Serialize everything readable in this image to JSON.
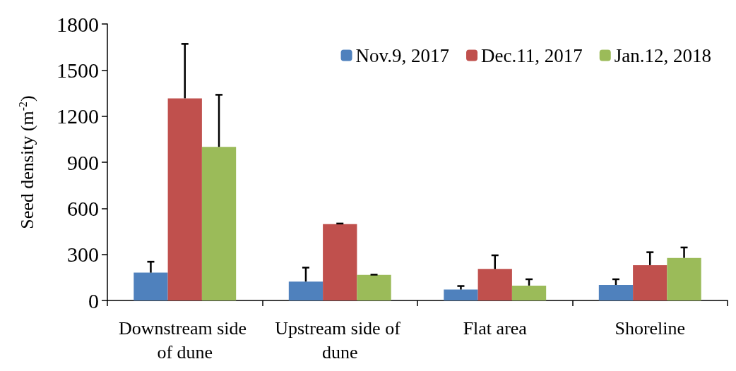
{
  "chart_data": {
    "type": "bar",
    "ylabel": "Seed density (m$^{-2}$)",
    "categories": [
      "Downstream side of dune",
      "Upstream side of dune",
      "Flat area",
      "Shoreline"
    ],
    "series": [
      {
        "name": "Nov.9, 2017",
        "color": "#4f81bd",
        "values": [
          181,
          123,
          71,
          101
        ],
        "errors": [
          [
            181,
            252
          ],
          [
            123,
            214
          ],
          [
            71,
            94
          ],
          [
            101,
            138
          ]
        ]
      },
      {
        "name": "Dec.11, 2017",
        "color": "#c0504d",
        "values": [
          1316,
          497,
          205,
          230
        ],
        "errors": [
          [
            1316,
            1670
          ],
          [
            497,
            501
          ],
          [
            205,
            294
          ],
          [
            230,
            314
          ]
        ]
      },
      {
        "name": "Jan.12, 2018",
        "color": "#9bbb59",
        "values": [
          1000,
          166,
          97,
          277
        ],
        "errors": [
          [
            1000,
            1339
          ],
          [
            166,
            168
          ],
          [
            97,
            138
          ],
          [
            277,
            345
          ]
        ]
      }
    ],
    "ylim": [
      0,
      1800
    ],
    "yticks": [
      0,
      300,
      600,
      900,
      1200,
      1500,
      1800
    ],
    "grid": false,
    "legend": "top right"
  }
}
